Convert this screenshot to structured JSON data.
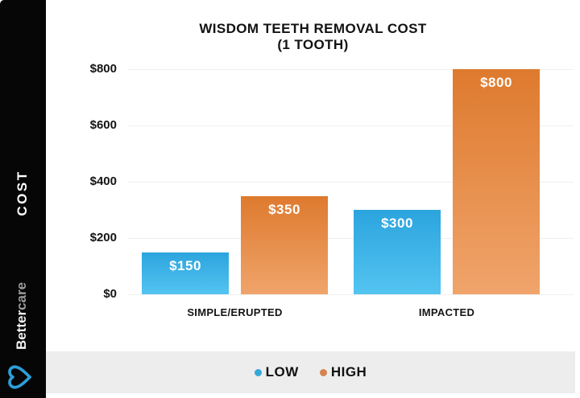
{
  "sidebar": {
    "cost_label": "COST",
    "brand": {
      "bold": "Better",
      "light": "care"
    },
    "colors": {
      "background": "#060606",
      "brand_bold": "#f2f2f2",
      "brand_light": "#9b9b9b",
      "logo_blue": "#2b9fd8"
    }
  },
  "chart_data": {
    "type": "bar",
    "title": "WISDOM TEETH REMOVAL COST",
    "subtitle": "(1 TOOTH)",
    "categories": [
      "SIMPLE/ERUPTED",
      "IMPACTED"
    ],
    "series": [
      {
        "name": "LOW",
        "values": [
          150,
          300
        ],
        "bar_labels": [
          "$150",
          "$300"
        ],
        "color_top": "#2ba4de",
        "color_bottom": "#54c4f1"
      },
      {
        "name": "HIGH",
        "values": [
          350,
          800
        ],
        "bar_labels": [
          "$350",
          "$800"
        ],
        "color_top": "#de7a2e",
        "color_bottom": "#f0a46b"
      }
    ],
    "y_ticks": [
      {
        "label": "$0",
        "value": 0
      },
      {
        "label": "$200",
        "value": 200
      },
      {
        "label": "$400",
        "value": 400
      },
      {
        "label": "$600",
        "value": 600
      },
      {
        "label": "$800",
        "value": 800
      }
    ],
    "ylim": [
      0,
      800
    ],
    "grid": true,
    "legend_position": "bottom"
  },
  "legend": {
    "items": [
      {
        "label": "LOW",
        "color": "#35a7d9"
      },
      {
        "label": "HIGH",
        "color": "#d5834f"
      }
    ]
  },
  "colors": {
    "legend_band": "#ededed",
    "gridline": "#f0f0f0",
    "text": "#141414"
  }
}
